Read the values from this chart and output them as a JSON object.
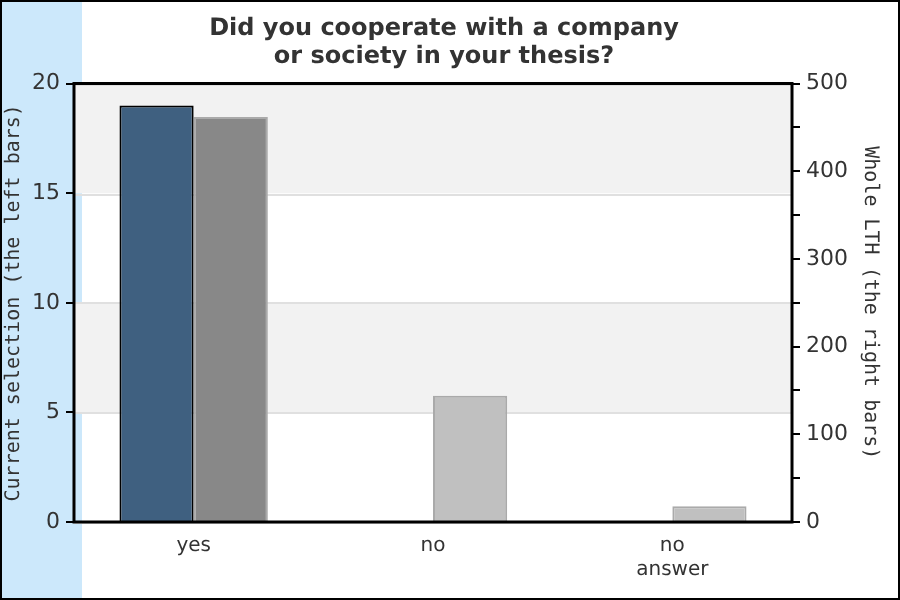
{
  "chart_data": {
    "type": "bar",
    "title": "Did you cooperate with a company or society in your thesis?",
    "categories": [
      "yes",
      "no",
      "no answer"
    ],
    "series": [
      {
        "color": "#3f6080",
        "values": [
          19,
          0,
          0
        ]
      },
      {
        "colors": [
          "#888888",
          "#c0c0c0",
          "#c0c0c0"
        ],
        "values": [
          462,
          144,
          18
        ],
        "axis": "y2"
      }
    ],
    "ylabel": "Current selection (the left bars)",
    "y2label": "Whole LTH (the right bars)",
    "ylim": [
      0,
      20
    ],
    "yticks": [
      0,
      5,
      10,
      15,
      20
    ],
    "y2lim": [
      0,
      500
    ],
    "y2ticks": [
      0,
      {
        "value": 50,
        "label": null
      },
      100,
      {
        "value": 150,
        "label": null
      },
      200,
      {
        "value": 250,
        "label": null
      },
      300,
      {
        "value": 350,
        "label": null
      },
      400,
      {
        "value": 450,
        "label": null
      },
      500
    ],
    "grid": "y",
    "legend": false
  }
}
